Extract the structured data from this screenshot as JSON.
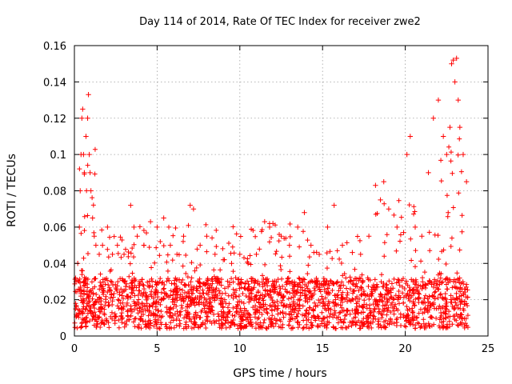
{
  "chart_data": {
    "type": "scatter",
    "title": "Day 114 of 2014, Rate Of TEC Index for receiver zwe2",
    "xlabel": "GPS time / hours",
    "ylabel": "ROTI / TECUs",
    "xlim": [
      0,
      25
    ],
    "ylim": [
      0,
      0.16
    ],
    "x_ticks": [
      "0",
      "5",
      "10",
      "15",
      "20",
      "25"
    ],
    "y_ticks": [
      "0",
      "0.02",
      "0.04",
      "0.06",
      "0.08",
      "0.1",
      "0.12",
      "0.14",
      "0.16"
    ],
    "grid": true,
    "marker": "+",
    "color": "#ff0000",
    "series": [
      {
        "name": "ROTI",
        "x": [
          0.1,
          0.2,
          0.3,
          0.35,
          0.4,
          0.45,
          0.5,
          0.55,
          0.6,
          0.7,
          0.8,
          0.85,
          0.9,
          0.95,
          1.0,
          1.1,
          1.2,
          1.3,
          1.5,
          1.7,
          2.0,
          2.3,
          2.6,
          3.0,
          3.4,
          3.6,
          3.8,
          4.2,
          4.6,
          5.0,
          5.4,
          5.8,
          6.2,
          6.6,
          7.0,
          7.2,
          7.6,
          8.0,
          8.5,
          9.0,
          9.5,
          10.0,
          10.5,
          11.0,
          11.5,
          11.8,
          12.0,
          12.5,
          13.0,
          13.5,
          13.9,
          14.3,
          14.8,
          15.3,
          15.7,
          16.2,
          16.8,
          17.3,
          17.8,
          18.2,
          18.5,
          18.7,
          19.0,
          19.5,
          19.9,
          20.1,
          20.3,
          20.6,
          21.0,
          21.4,
          21.7,
          22.0,
          22.3,
          22.5,
          22.7,
          22.8,
          22.9,
          23.0,
          23.1,
          23.2,
          23.3,
          23.5,
          23.7
        ],
        "y": [
          0.03,
          0.04,
          0.06,
          0.08,
          0.1,
          0.12,
          0.125,
          0.1,
          0.09,
          0.11,
          0.12,
          0.133,
          0.1,
          0.09,
          0.08,
          0.065,
          0.055,
          0.05,
          0.045,
          0.05,
          0.06,
          0.045,
          0.05,
          0.045,
          0.072,
          0.06,
          0.055,
          0.05,
          0.063,
          0.06,
          0.065,
          0.05,
          0.045,
          0.055,
          0.072,
          0.07,
          0.05,
          0.055,
          0.045,
          0.042,
          0.04,
          0.045,
          0.04,
          0.045,
          0.063,
          0.06,
          0.062,
          0.055,
          0.05,
          0.06,
          0.068,
          0.05,
          0.045,
          0.06,
          0.072,
          0.05,
          0.046,
          0.045,
          0.055,
          0.083,
          0.075,
          0.085,
          0.07,
          0.06,
          0.057,
          0.1,
          0.11,
          0.06,
          0.055,
          0.09,
          0.12,
          0.13,
          0.11,
          0.1,
          0.115,
          0.15,
          0.152,
          0.14,
          0.153,
          0.13,
          0.115,
          0.1,
          0.085
        ]
      }
    ]
  }
}
